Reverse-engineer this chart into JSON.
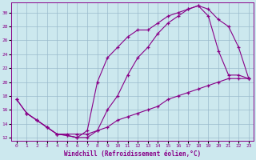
{
  "xlabel": "Windchill (Refroidissement éolien,°C)",
  "bg_color": "#cce8ee",
  "line_color": "#880088",
  "grid_color": "#99bbcc",
  "xlim": [
    -0.5,
    23.5
  ],
  "ylim": [
    11.5,
    31.5
  ],
  "xticks": [
    0,
    1,
    2,
    3,
    4,
    5,
    6,
    7,
    8,
    9,
    10,
    11,
    12,
    13,
    14,
    15,
    16,
    17,
    18,
    19,
    20,
    21,
    22,
    23
  ],
  "yticks": [
    12,
    14,
    16,
    18,
    20,
    22,
    24,
    26,
    28,
    30
  ],
  "line1_x": [
    0,
    1,
    2,
    3,
    4,
    5,
    6,
    7,
    8,
    9,
    10,
    11,
    12,
    13,
    14,
    15,
    16,
    17,
    18,
    19,
    20,
    21,
    22,
    23
  ],
  "line1_y": [
    17.5,
    15.5,
    14.5,
    13.5,
    12.5,
    12.3,
    12.0,
    13.0,
    20.0,
    23.5,
    25.0,
    26.5,
    27.5,
    27.5,
    28.5,
    29.5,
    30.0,
    30.5,
    31.0,
    29.5,
    24.5,
    21.0,
    21.0,
    20.5
  ],
  "line2_x": [
    0,
    1,
    2,
    3,
    4,
    5,
    6,
    7,
    8,
    9,
    10,
    11,
    12,
    13,
    14,
    15,
    16,
    17,
    18,
    19,
    20,
    21,
    22,
    23
  ],
  "line2_y": [
    17.5,
    15.5,
    14.5,
    13.5,
    12.5,
    12.3,
    12.0,
    12.0,
    13.0,
    16.0,
    18.0,
    21.0,
    23.5,
    25.0,
    27.0,
    28.5,
    29.5,
    30.5,
    31.0,
    30.5,
    29.0,
    28.0,
    25.0,
    20.5
  ],
  "line3_x": [
    1,
    2,
    3,
    4,
    5,
    6,
    7,
    8,
    9,
    10,
    11,
    12,
    13,
    14,
    15,
    16,
    17,
    18,
    19,
    20,
    21,
    22,
    23
  ],
  "line3_y": [
    15.5,
    14.5,
    13.5,
    12.5,
    12.5,
    12.5,
    12.5,
    13.0,
    13.5,
    14.5,
    15.0,
    15.5,
    16.0,
    16.5,
    17.5,
    18.0,
    18.5,
    19.0,
    19.5,
    20.0,
    20.5,
    20.5,
    20.5
  ]
}
